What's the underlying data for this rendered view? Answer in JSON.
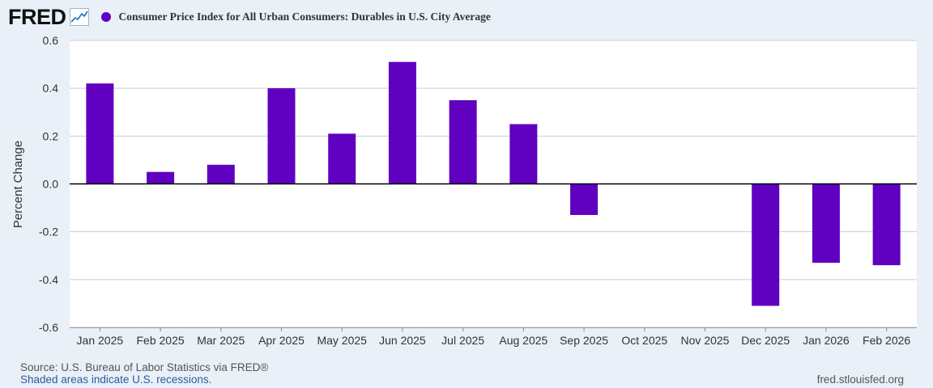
{
  "logo": {
    "text": "FRED"
  },
  "colors": {
    "series": "#6000c0",
    "background": "#e9f0f8",
    "plot_background": "#ffffff",
    "grid": "#cccccc"
  },
  "chart_data": {
    "type": "bar",
    "title": "Consumer Price Index for All Urban Consumers: Durables in U.S. City Average",
    "xlabel": "",
    "ylabel": "Percent Change",
    "ylim": [
      -0.6,
      0.6
    ],
    "yticks": [
      0.6,
      0.4,
      0.2,
      0.0,
      -0.2,
      -0.4,
      -0.6
    ],
    "ytick_labels": [
      "0.6",
      "0.4",
      "0.2",
      "0.0",
      "-0.2",
      "-0.4",
      "-0.6"
    ],
    "categories": [
      "Jan 2025",
      "Feb 2025",
      "Mar 2025",
      "Apr 2025",
      "May 2025",
      "Jun 2025",
      "Jul 2025",
      "Aug 2025",
      "Sep 2025",
      "Oct 2025",
      "Nov 2025",
      "Dec 2025",
      "Jan 2026",
      "Feb 2026"
    ],
    "values": [
      0.42,
      0.05,
      0.08,
      0.4,
      0.21,
      0.51,
      0.35,
      0.25,
      -0.13,
      null,
      null,
      -0.51,
      -0.33,
      -0.34
    ],
    "grid": true
  },
  "footer": {
    "source": "Source: U.S. Bureau of Labor Statistics via FRED®",
    "recession_note": "Shaded areas indicate U.S. recessions.",
    "url": "fred.stlouisfed.org"
  }
}
